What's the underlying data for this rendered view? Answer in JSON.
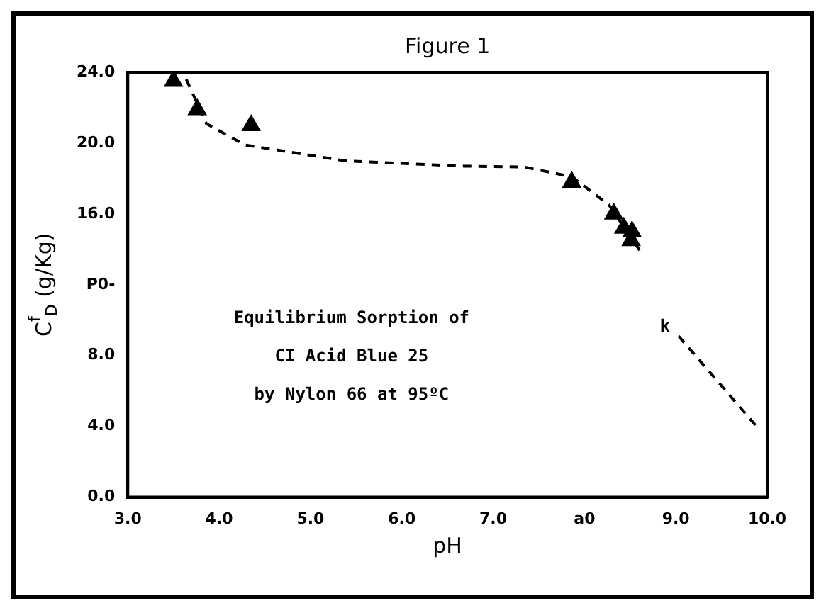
{
  "chart_data": {
    "type": "scatter",
    "title": "Figure 1",
    "xlabel": "pH",
    "ylabel": "C$^{f}$$_{D}$ (g/Kg)",
    "annotations": [
      "Equilibrium Sorption of",
      "CI Acid Blue 25",
      "by Nylon 66 at 95ºC",
      "k"
    ],
    "xlim": [
      3,
      10
    ],
    "ylim": [
      0,
      24
    ],
    "xticks": [
      {
        "value": 3,
        "label": "3.0"
      },
      {
        "value": 4,
        "label": "4.0"
      },
      {
        "value": 5,
        "label": "5.0"
      },
      {
        "value": 6,
        "label": "6.0"
      },
      {
        "value": 7,
        "label": "7.0"
      },
      {
        "value": 8,
        "label": "a0"
      },
      {
        "value": 9,
        "label": "9.0"
      },
      {
        "value": 10,
        "label": "10.0"
      }
    ],
    "yticks": [
      {
        "value": 0,
        "label": "0.0"
      },
      {
        "value": 4,
        "label": "4.0"
      },
      {
        "value": 8,
        "label": "8.0"
      },
      {
        "value": 12,
        "label": "P0-"
      },
      {
        "value": 16,
        "label": "16.0"
      },
      {
        "value": 20,
        "label": "20.0"
      },
      {
        "value": 24,
        "label": "24.0"
      }
    ],
    "grid": false,
    "legend": false,
    "series": [
      {
        "type": "scatter",
        "color": "#000000",
        "marker": "triangle",
        "x": [
          3.5,
          3.76,
          4.35,
          7.86,
          8.32,
          8.43,
          8.52,
          8.51
        ],
        "values": [
          23.5,
          21.9,
          21.0,
          17.8,
          16.0,
          15.2,
          15.0,
          14.5
        ]
      },
      {
        "type": "line",
        "color": "#000000",
        "marker": "none",
        "line_style": "dashed",
        "x": [
          3.64,
          3.86,
          4.28,
          5.38,
          6.68,
          7.34,
          7.86,
          8.27,
          8.61,
          8.8,
          9.03,
          9.9
        ],
        "values": [
          23.6,
          21.1,
          19.9,
          19.0,
          18.7,
          18.65,
          18.1,
          16.5,
          13.9,
          null,
          9.1,
          3.9
        ]
      }
    ]
  }
}
